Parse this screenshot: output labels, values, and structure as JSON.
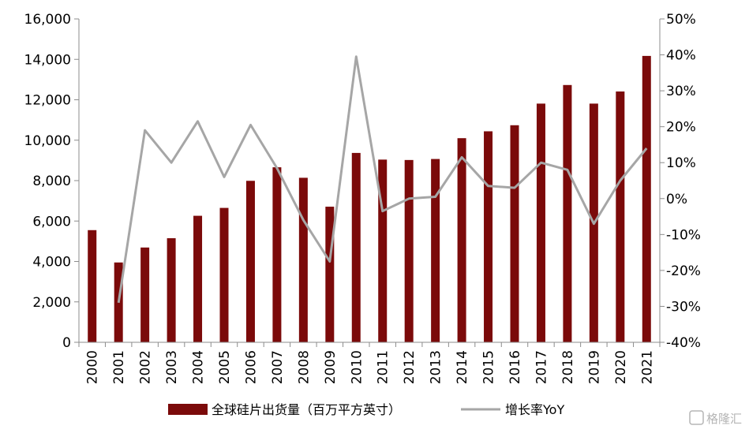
{
  "chart_data": {
    "type": "bar",
    "categories": [
      "2000",
      "2001",
      "2002",
      "2003",
      "2004",
      "2005",
      "2006",
      "2007",
      "2008",
      "2009",
      "2010",
      "2011",
      "2012",
      "2013",
      "2014",
      "2015",
      "2016",
      "2017",
      "2018",
      "2019",
      "2020",
      "2021"
    ],
    "series": [
      {
        "name": "全球硅片出货量（百万平方英寸）",
        "type": "bar",
        "axis": "left",
        "color": "#7b0a0a",
        "values": [
          5550,
          3950,
          4690,
          5150,
          6260,
          6650,
          7990,
          8660,
          8140,
          6710,
          9370,
          9040,
          9020,
          9070,
          10100,
          10440,
          10740,
          11810,
          12730,
          11810,
          12410,
          14170
        ]
      },
      {
        "name": "增长率YoY",
        "type": "line",
        "axis": "right",
        "color": "#a6a6a6",
        "values": [
          null,
          -29,
          19,
          10,
          21.5,
          6,
          20.5,
          8.5,
          -6,
          -17.5,
          39.5,
          -3.5,
          0,
          0.5,
          11.5,
          3.5,
          3,
          10,
          8,
          -7,
          5,
          14
        ]
      }
    ],
    "y_left": {
      "lim": [
        0,
        16000
      ],
      "ticks": [
        "0",
        "2,000",
        "4,000",
        "6,000",
        "8,000",
        "10,000",
        "12,000",
        "14,000",
        "16,000"
      ]
    },
    "y_right": {
      "lim": [
        -40,
        50
      ],
      "ticks": [
        "-40%",
        "-30%",
        "-20%",
        "-10%",
        "0%",
        "10%",
        "20%",
        "30%",
        "40%",
        "50%"
      ]
    },
    "grid": false,
    "legend": "bottom"
  },
  "watermark": "格隆汇"
}
